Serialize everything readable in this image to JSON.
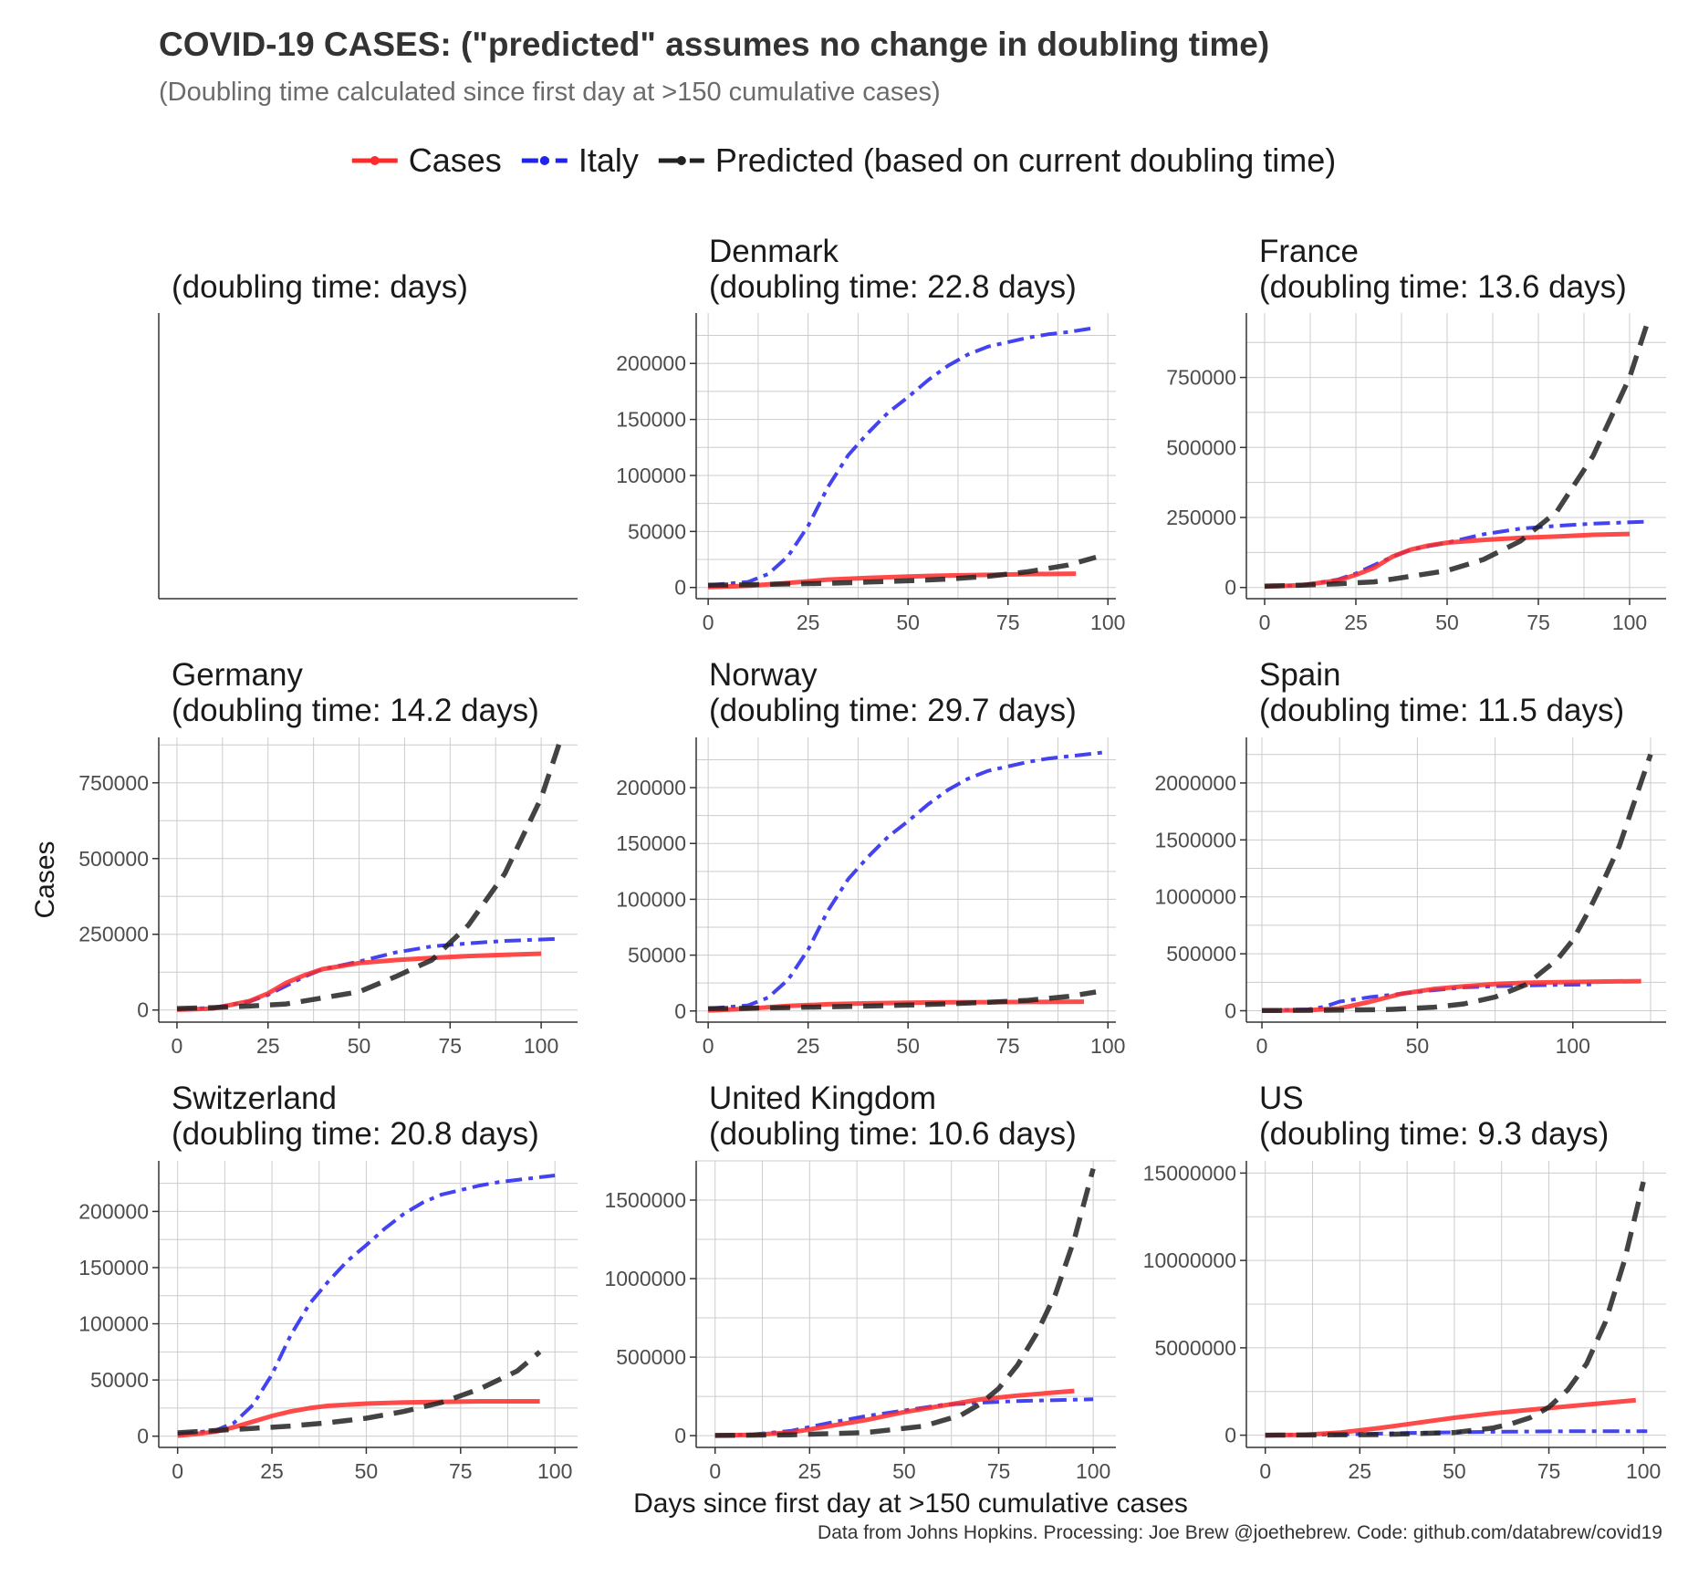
{
  "title": "COVID-19 CASES: (\"predicted\" assumes no change in doubling time)",
  "subtitle": "(Doubling time calculated since first day at >150 cumulative cases)",
  "caption": "Data from Johns Hopkins. Processing: Joe Brew @joethebrew. Code: github.com/databrew/covid19",
  "colors": {
    "cases": "#ff2a2a",
    "italy": "#2222ee",
    "predicted": "#222222",
    "grid": "#cccccc",
    "axis": "#333333"
  },
  "legend": {
    "items": [
      {
        "label": "Cases",
        "style": "solid",
        "color": "#ff2a2a"
      },
      {
        "label": "Italy",
        "style": "dotdash",
        "color": "#2222ee"
      },
      {
        "label": "Predicted (based on current doubling time)",
        "style": "dashed",
        "color": "#222222"
      }
    ]
  },
  "chart_data": {
    "type": "line",
    "title": "COVID-19 CASES: (\"predicted\" assumes no change in doubling time)",
    "xlabel": "Days since first day at >150 cumulative cases",
    "ylabel": "Cases",
    "grid": true,
    "legend_position": "top",
    "panels": [
      {
        "name": "",
        "header": "(doubling time:  days)",
        "empty": true
      },
      {
        "name": "Denmark",
        "header": "(doubling time: 22.8 days)",
        "xlim": [
          -3,
          102
        ],
        "ylim": [
          -10000,
          245000
        ],
        "xticks": [
          0,
          25,
          50,
          75,
          100
        ],
        "yticks": [
          0,
          50000,
          100000,
          150000,
          200000
        ],
        "series": [
          {
            "name": "Cases",
            "x": [
              0,
              10,
              20,
              30,
              40,
              50,
              60,
              70,
              80,
              92
            ],
            "y": [
              300,
              1500,
              4000,
              7000,
              8500,
              9800,
              10700,
              11300,
              11900,
              12300
            ]
          },
          {
            "name": "Italy",
            "x": [
              0,
              10,
              15,
              20,
              25,
              30,
              35,
              40,
              45,
              50,
              55,
              60,
              65,
              70,
              75,
              80,
              85,
              90,
              97
            ],
            "y": [
              2000,
              5000,
              12000,
              28000,
              55000,
              90000,
              118000,
              138000,
              156000,
              170000,
              185000,
              198000,
              208000,
              215000,
              219000,
              223000,
              226000,
              228000,
              232000
            ]
          },
          {
            "name": "Predicted",
            "x": [
              0,
              10,
              20,
              30,
              40,
              50,
              60,
              70,
              80,
              90,
              97
            ],
            "y": [
              2000,
              2500,
              3100,
              3800,
              4800,
              6000,
              7500,
              10000,
              14000,
              20000,
              27000
            ]
          }
        ]
      },
      {
        "name": "France",
        "header": "(doubling time: 13.6 days)",
        "xlim": [
          -5,
          110
        ],
        "ylim": [
          -40000,
          980000
        ],
        "xticks": [
          0,
          25,
          50,
          75,
          100
        ],
        "yticks": [
          0,
          250000,
          500000,
          750000
        ],
        "series": [
          {
            "name": "Cases",
            "x": [
              0,
              10,
              20,
              25,
              30,
              35,
              40,
              45,
              50,
              60,
              70,
              80,
              90,
              100
            ],
            "y": [
              3000,
              8000,
              25000,
              45000,
              70000,
              110000,
              135000,
              150000,
              160000,
              170000,
              177000,
              182000,
              188000,
              191000
            ]
          },
          {
            "name": "Italy",
            "x": [
              0,
              10,
              20,
              25,
              30,
              35,
              40,
              50,
              60,
              70,
              80,
              90,
              105
            ],
            "y": [
              2000,
              8000,
              28000,
              50000,
              80000,
              110000,
              135000,
              160000,
              190000,
              210000,
              220000,
              228000,
              235000
            ]
          },
          {
            "name": "Predicted",
            "x": [
              0,
              10,
              20,
              30,
              40,
              50,
              60,
              70,
              80,
              90,
              100,
              105
            ],
            "y": [
              5000,
              8000,
              13000,
              20000,
              40000,
              60000,
              100000,
              165000,
              270000,
              470000,
              750000,
              950000
            ]
          }
        ]
      },
      {
        "name": "Germany",
        "header": "(doubling time: 14.2 days)",
        "xlim": [
          -5,
          110
        ],
        "ylim": [
          -40000,
          900000
        ],
        "xticks": [
          0,
          25,
          50,
          75,
          100
        ],
        "yticks": [
          0,
          250000,
          500000,
          750000
        ],
        "series": [
          {
            "name": "Cases",
            "x": [
              0,
              10,
              20,
              25,
              30,
              35,
              40,
              45,
              50,
              60,
              70,
              80,
              90,
              100
            ],
            "y": [
              1000,
              5000,
              30000,
              55000,
              90000,
              115000,
              135000,
              145000,
              155000,
              165000,
              172000,
              178000,
              182000,
              186000
            ]
          },
          {
            "name": "Italy",
            "x": [
              0,
              10,
              20,
              25,
              30,
              35,
              40,
              50,
              60,
              70,
              80,
              90,
              105
            ],
            "y": [
              2000,
              8000,
              28000,
              50000,
              80000,
              110000,
              135000,
              160000,
              190000,
              210000,
              220000,
              228000,
              235000
            ]
          },
          {
            "name": "Predicted",
            "x": [
              0,
              10,
              20,
              30,
              40,
              50,
              60,
              70,
              80,
              90,
              100,
              105
            ],
            "y": [
              5000,
              8000,
              13000,
              20000,
              40000,
              60000,
              110000,
              165000,
              280000,
              450000,
              700000,
              880000
            ]
          }
        ]
      },
      {
        "name": "Norway",
        "header": "(doubling time: 29.7 days)",
        "xlim": [
          -3,
          102
        ],
        "ylim": [
          -10000,
          245000
        ],
        "xticks": [
          0,
          25,
          50,
          75,
          100
        ],
        "yticks": [
          0,
          50000,
          100000,
          150000,
          200000
        ],
        "series": [
          {
            "name": "Cases",
            "x": [
              0,
              10,
              20,
              30,
              40,
              50,
              60,
              70,
              80,
              94
            ],
            "y": [
              400,
              2000,
              4500,
              6000,
              6800,
              7300,
              7700,
              7900,
              8100,
              8300
            ]
          },
          {
            "name": "Italy",
            "x": [
              0,
              10,
              15,
              20,
              25,
              30,
              35,
              40,
              45,
              50,
              55,
              60,
              65,
              70,
              75,
              80,
              85,
              90,
              100
            ],
            "y": [
              2000,
              5000,
              12000,
              28000,
              55000,
              90000,
              118000,
              138000,
              156000,
              170000,
              185000,
              198000,
              208000,
              215000,
              219000,
              223000,
              226000,
              228000,
              232000
            ]
          },
          {
            "name": "Predicted",
            "x": [
              0,
              10,
              20,
              30,
              40,
              50,
              60,
              70,
              80,
              90,
              97
            ],
            "y": [
              2000,
              2500,
              3000,
              3700,
              4400,
              5300,
              6400,
              7700,
              9500,
              13000,
              17000
            ]
          }
        ]
      },
      {
        "name": "Spain",
        "header": "(doubling time: 11.5 days)",
        "xlim": [
          -5,
          130
        ],
        "ylim": [
          -100000,
          2400000
        ],
        "xticks": [
          0,
          50,
          100
        ],
        "yticks": [
          0,
          500000,
          1000000,
          1500000,
          2000000
        ],
        "series": [
          {
            "name": "Cases",
            "x": [
              0,
              15,
              25,
              35,
              45,
              55,
              65,
              75,
              85,
              95,
              105,
              122
            ],
            "y": [
              2000,
              5000,
              20000,
              80000,
              150000,
              190000,
              215000,
              235000,
              245000,
              250000,
              255000,
              260000
            ]
          },
          {
            "name": "Italy",
            "x": [
              0,
              15,
              20,
              25,
              35,
              45,
              55,
              65,
              75,
              85,
              95,
              108
            ],
            "y": [
              3000,
              12000,
              35000,
              80000,
              120000,
              150000,
              180000,
              205000,
              215000,
              222000,
              228000,
              232000
            ]
          },
          {
            "name": "Predicted",
            "x": [
              0,
              20,
              40,
              55,
              65,
              75,
              85,
              95,
              100,
              105,
              110,
              115,
              120,
              125
            ],
            "y": [
              2000,
              4000,
              10000,
              30000,
              60000,
              120000,
              230000,
              450000,
              620000,
              870000,
              1150000,
              1450000,
              1850000,
              2250000
            ]
          }
        ]
      },
      {
        "name": "Switzerland",
        "header": "(doubling time: 20.8 days)",
        "xlim": [
          -5,
          106
        ],
        "ylim": [
          -10000,
          245000
        ],
        "xticks": [
          0,
          25,
          50,
          75,
          100
        ],
        "yticks": [
          0,
          50000,
          100000,
          150000,
          200000
        ],
        "series": [
          {
            "name": "Cases",
            "x": [
              0,
              5,
              10,
              15,
              20,
              25,
              30,
              35,
              40,
              50,
              60,
              70,
              80,
              96
            ],
            "y": [
              500,
              2000,
              4000,
              8000,
              13000,
              18000,
              22000,
              25000,
              27000,
              29000,
              30000,
              30500,
              31000,
              31000
            ]
          },
          {
            "name": "Italy",
            "x": [
              0,
              10,
              15,
              20,
              25,
              30,
              35,
              40,
              45,
              50,
              55,
              60,
              65,
              70,
              75,
              80,
              85,
              90,
              100
            ],
            "y": [
              2000,
              5000,
              12000,
              28000,
              55000,
              90000,
              118000,
              138000,
              156000,
              170000,
              185000,
              198000,
              208000,
              215000,
              219000,
              223000,
              226000,
              228000,
              232000
            ]
          },
          {
            "name": "Predicted",
            "x": [
              0,
              10,
              20,
              30,
              40,
              50,
              60,
              70,
              80,
              90,
              96
            ],
            "y": [
              3000,
              5000,
              7000,
              9000,
              12000,
              16000,
              22000,
              30000,
              42000,
              58000,
              75000
            ]
          }
        ]
      },
      {
        "name": "United Kingdom",
        "header": "(doubling time: 10.6 days)",
        "xlim": [
          -5,
          106
        ],
        "ylim": [
          -75000,
          1750000
        ],
        "xticks": [
          0,
          25,
          50,
          75,
          100
        ],
        "yticks": [
          0,
          500000,
          1000000,
          1500000
        ],
        "series": [
          {
            "name": "Cases",
            "x": [
              0,
              10,
              20,
              30,
              40,
              50,
              60,
              70,
              80,
              90,
              95
            ],
            "y": [
              1000,
              5000,
              20000,
              60000,
              100000,
              150000,
              190000,
              230000,
              255000,
              275000,
              285000
            ]
          },
          {
            "name": "Italy",
            "x": [
              0,
              10,
              20,
              30,
              40,
              50,
              60,
              70,
              80,
              90,
              100
            ],
            "y": [
              2000,
              8000,
              30000,
              80000,
              125000,
              160000,
              195000,
              210000,
              220000,
              226000,
              232000
            ]
          },
          {
            "name": "Predicted",
            "x": [
              0,
              20,
              40,
              55,
              65,
              70,
              75,
              80,
              85,
              90,
              95,
              100
            ],
            "y": [
              1000,
              5000,
              20000,
              60000,
              130000,
              200000,
              300000,
              450000,
              650000,
              900000,
              1250000,
              1700000
            ]
          }
        ]
      },
      {
        "name": "US",
        "header": "(doubling time: 9.3 days)",
        "xlim": [
          -5,
          106
        ],
        "ylim": [
          -700000,
          15700000
        ],
        "xticks": [
          0,
          25,
          50,
          75,
          100
        ],
        "yticks": [
          0,
          5000000,
          10000000,
          15000000
        ],
        "series": [
          {
            "name": "Cases",
            "x": [
              0,
              10,
              20,
              30,
              40,
              50,
              60,
              70,
              80,
              90,
              98
            ],
            "y": [
              2000,
              20000,
              150000,
              400000,
              700000,
              1000000,
              1250000,
              1450000,
              1650000,
              1850000,
              2000000
            ]
          },
          {
            "name": "Italy",
            "x": [
              0,
              20,
              40,
              60,
              80,
              101
            ],
            "y": [
              3000,
              40000,
              135000,
              195000,
              222000,
              232000
            ]
          },
          {
            "name": "Predicted",
            "x": [
              0,
              30,
              50,
              60,
              65,
              70,
              75,
              80,
              85,
              90,
              95,
              100
            ],
            "y": [
              2000,
              30000,
              150000,
              400000,
              650000,
              1000000,
              1600000,
              2600000,
              4100000,
              6500000,
              10000000,
              14500000
            ]
          }
        ]
      }
    ]
  }
}
